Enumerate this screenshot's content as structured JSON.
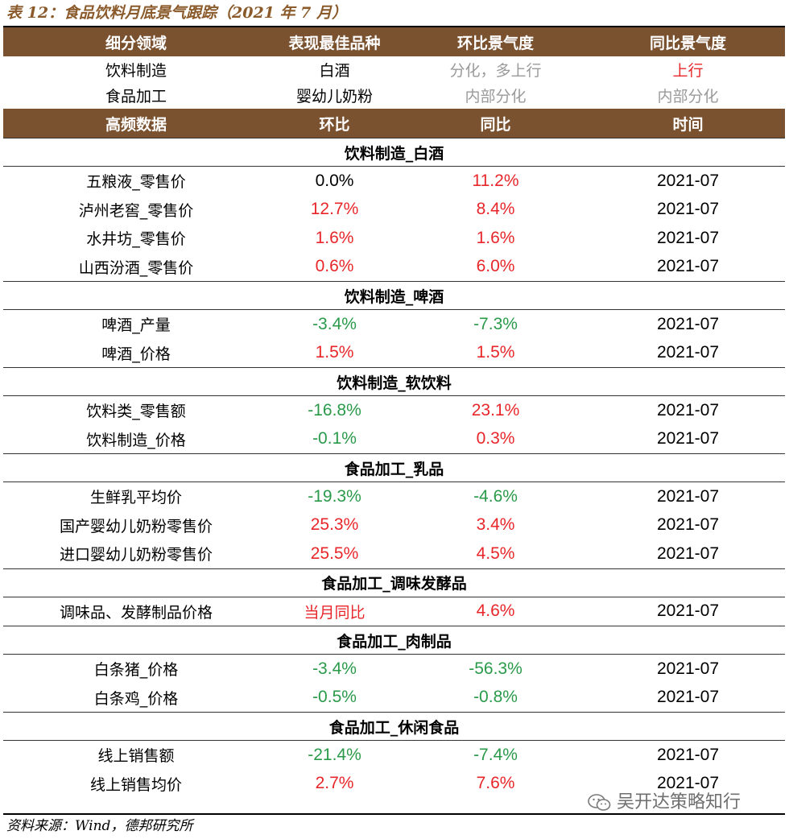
{
  "title": "表 12：食品饮料月底景气跟踪（2021 年 7 月）",
  "header1": [
    "细分领域",
    "表现最佳品种",
    "环比景气度",
    "同比景气度"
  ],
  "summary": [
    {
      "c1": "饮料制造",
      "c2": "白酒",
      "c3": "分化，多上行",
      "c3_color": "gray",
      "c4": "上行",
      "c4_color": "red"
    },
    {
      "c1": "食品加工",
      "c2": "婴幼儿奶粉",
      "c3": "内部分化",
      "c3_color": "gray",
      "c4": "内部分化",
      "c4_color": "gray"
    }
  ],
  "header2": [
    "高频数据",
    "环比",
    "同比",
    "时间"
  ],
  "sections": [
    {
      "name": "饮料制造_白酒",
      "rows": [
        {
          "label": "五粮液_零售价",
          "mom": "0.0%",
          "mom_color": "black",
          "yoy": "11.2%",
          "yoy_color": "red",
          "time": "2021-07"
        },
        {
          "label": "泸州老窖_零售价",
          "mom": "12.7%",
          "mom_color": "red",
          "yoy": "8.4%",
          "yoy_color": "red",
          "time": "2021-07"
        },
        {
          "label": "水井坊_零售价",
          "mom": "1.6%",
          "mom_color": "red",
          "yoy": "1.6%",
          "yoy_color": "red",
          "time": "2021-07"
        },
        {
          "label": "山西汾酒_零售价",
          "mom": "0.6%",
          "mom_color": "red",
          "yoy": "6.0%",
          "yoy_color": "red",
          "time": "2021-07"
        }
      ]
    },
    {
      "name": "饮料制造_啤酒",
      "rows": [
        {
          "label": "啤酒_产量",
          "mom": "-3.4%",
          "mom_color": "green",
          "yoy": "-7.3%",
          "yoy_color": "green",
          "time": "2021-07"
        },
        {
          "label": "啤酒_价格",
          "mom": "1.5%",
          "mom_color": "red",
          "yoy": "1.5%",
          "yoy_color": "red",
          "time": "2021-07"
        }
      ]
    },
    {
      "name": "饮料制造_软饮料",
      "rows": [
        {
          "label": "饮料类_零售额",
          "mom": "-16.8%",
          "mom_color": "green",
          "yoy": "23.1%",
          "yoy_color": "red",
          "time": "2021-07"
        },
        {
          "label": "饮料制造_价格",
          "mom": "-0.1%",
          "mom_color": "green",
          "yoy": "0.3%",
          "yoy_color": "red",
          "time": "2021-07"
        }
      ]
    },
    {
      "name": "食品加工_乳品",
      "rows": [
        {
          "label": "生鲜乳平均价",
          "mom": "-19.3%",
          "mom_color": "green",
          "yoy": "-4.6%",
          "yoy_color": "green",
          "time": "2021-07"
        },
        {
          "label": "国产婴幼儿奶粉零售价",
          "mom": "25.3%",
          "mom_color": "red",
          "yoy": "3.4%",
          "yoy_color": "red",
          "time": "2021-07"
        },
        {
          "label": "进口婴幼儿奶粉零售价",
          "mom": "25.5%",
          "mom_color": "red",
          "yoy": "4.5%",
          "yoy_color": "red",
          "time": "2021-07"
        }
      ]
    },
    {
      "name": "食品加工_调味发酵品",
      "rows": [
        {
          "label": "调味品、发酵制品价格",
          "mom": "当月同比",
          "mom_color": "red",
          "mom_text": true,
          "yoy": "4.6%",
          "yoy_color": "red",
          "time": "2021-07"
        }
      ]
    },
    {
      "name": "食品加工_肉制品",
      "rows": [
        {
          "label": "白条猪_价格",
          "mom": "-3.4%",
          "mom_color": "green",
          "yoy": "-56.3%",
          "yoy_color": "green",
          "time": "2021-07"
        },
        {
          "label": "白条鸡_价格",
          "mom": "-0.5%",
          "mom_color": "green",
          "yoy": "-0.8%",
          "yoy_color": "green",
          "time": "2021-07"
        }
      ]
    },
    {
      "name": "食品加工_休闲食品",
      "rows": [
        {
          "label": "线上销售额",
          "mom": "-21.4%",
          "mom_color": "green",
          "yoy": "-7.4%",
          "yoy_color": "green",
          "time": "2021-07"
        },
        {
          "label": "线上销售均价",
          "mom": "2.7%",
          "mom_color": "red",
          "yoy": "7.6%",
          "yoy_color": "red",
          "time": "2021-07"
        }
      ]
    }
  ],
  "source": "资料来源：Wind，德邦研究所",
  "watermark": "吴开达策略知行",
  "watermark_icon": "wechat-icon"
}
